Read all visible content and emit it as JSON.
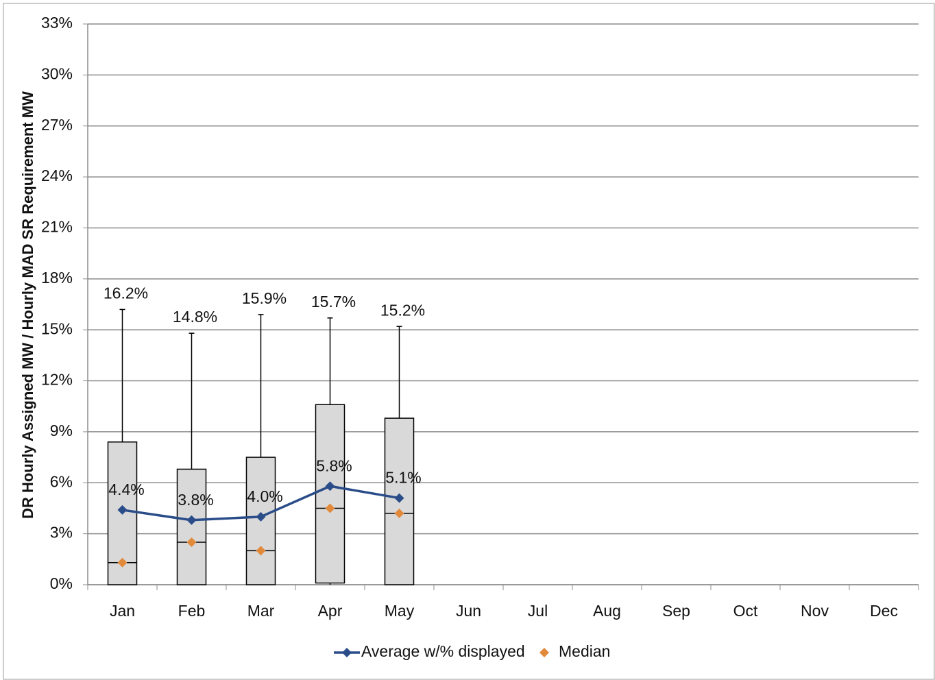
{
  "chart_data": {
    "type": "box",
    "ylabel": "DR Hourly Assigned MW / Hourly MAD SR Requirement MW",
    "categories": [
      "Jan",
      "Feb",
      "Mar",
      "Apr",
      "May",
      "Jun",
      "Jul",
      "Aug",
      "Sep",
      "Oct",
      "Nov",
      "Dec"
    ],
    "ylim": [
      0,
      33
    ],
    "yticks": [
      {
        "value": 0,
        "label": "0%"
      },
      {
        "value": 3,
        "label": "3%"
      },
      {
        "value": 6,
        "label": "6%"
      },
      {
        "value": 9,
        "label": "9%"
      },
      {
        "value": 12,
        "label": "12%"
      },
      {
        "value": 15,
        "label": "15%"
      },
      {
        "value": 18,
        "label": "18%"
      },
      {
        "value": 21,
        "label": "21%"
      },
      {
        "value": 24,
        "label": "24%"
      },
      {
        "value": 27,
        "label": "27%"
      },
      {
        "value": 30,
        "label": "30%"
      },
      {
        "value": 33,
        "label": "33%"
      }
    ],
    "grid": true,
    "box_color": "#d9d9d9",
    "boxes": {
      "min": [
        0,
        0,
        0,
        0,
        0,
        null,
        null,
        null,
        null,
        null,
        null,
        null
      ],
      "q1": [
        0,
        0,
        0,
        0.1,
        0,
        null,
        null,
        null,
        null,
        null,
        null,
        null
      ],
      "q3": [
        8.4,
        6.8,
        7.5,
        10.6,
        9.8,
        null,
        null,
        null,
        null,
        null,
        null,
        null
      ],
      "max": [
        16.2,
        14.8,
        15.9,
        15.7,
        15.2,
        null,
        null,
        null,
        null,
        null,
        null,
        null
      ],
      "max_labels": [
        "16.2%",
        "14.8%",
        "15.9%",
        "15.7%",
        "15.2%",
        null,
        null,
        null,
        null,
        null,
        null,
        null
      ]
    },
    "series": [
      {
        "name": "Average w/% displayed",
        "color": "#2a4d8a",
        "values": [
          4.4,
          3.8,
          4.0,
          5.8,
          5.1,
          null,
          null,
          null,
          null,
          null,
          null,
          null
        ],
        "value_labels": [
          "4.4%",
          "3.8%",
          "4.0%",
          "5.8%",
          "5.1%",
          null,
          null,
          null,
          null,
          null,
          null,
          null
        ]
      },
      {
        "name": "Median",
        "color": "#e28a3b",
        "values": [
          1.3,
          2.5,
          2.0,
          4.5,
          4.2,
          null,
          null,
          null,
          null,
          null,
          null,
          null
        ]
      }
    ]
  }
}
